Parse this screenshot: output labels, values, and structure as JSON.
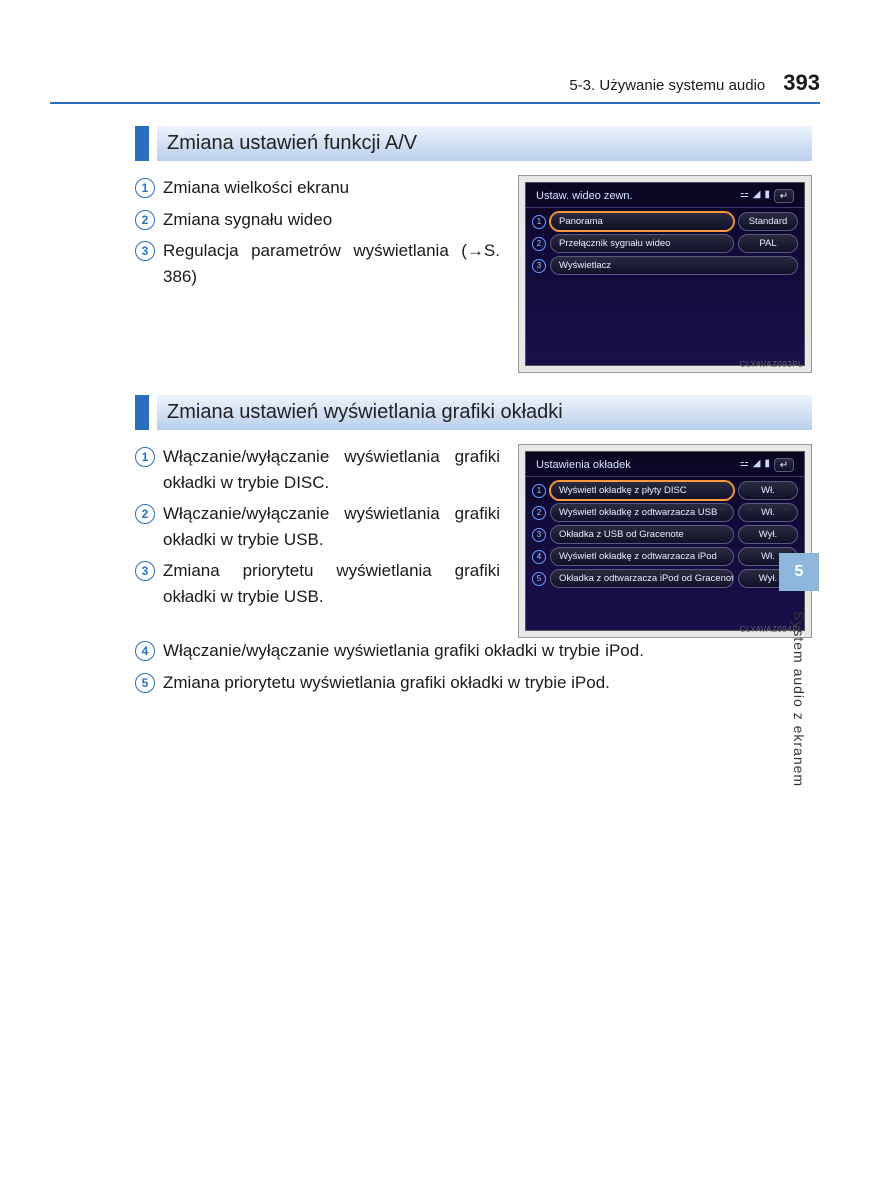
{
  "header": {
    "section_ref": "5-3. Używanie systemu audio",
    "page_number": "393"
  },
  "side_tab": {
    "chapter_number": "5",
    "label": "System audio z ekranem"
  },
  "section1": {
    "title": "Zmiana ustawień funkcji A/V",
    "items": [
      {
        "n": "1",
        "text": "Zmiana wielkości ekranu"
      },
      {
        "n": "2",
        "text": "Zmiana sygnału wideo"
      },
      {
        "n": "3",
        "text": "Regulacja parametrów wyświetlania (→S. 386)"
      }
    ],
    "screen": {
      "title": "Ustaw. wideo zewn.",
      "rows": [
        {
          "n": "1",
          "label": "Panorama",
          "value": "Standard",
          "highlight": true
        },
        {
          "n": "2",
          "label": "Przełącznik sygnału wideo",
          "value": "PAL",
          "highlight": false
        },
        {
          "n": "3",
          "label": "Wyświetlacz",
          "value": "",
          "highlight": false
        }
      ],
      "code": "CLYAVAZ093PL"
    }
  },
  "section2": {
    "title": "Zmiana ustawień wyświetlania grafiki okładki",
    "items_left": [
      {
        "n": "1",
        "text": "Włączanie/wyłączanie wyświetlania grafiki okładki w trybie DISC."
      },
      {
        "n": "2",
        "text": "Włączanie/wyłączanie wyświetlania grafiki okładki w trybie USB."
      },
      {
        "n": "3",
        "text": "Zmiana priorytetu wyświetlania grafiki okładki w trybie USB."
      }
    ],
    "items_full": [
      {
        "n": "4",
        "text": "Włączanie/wyłączanie wyświetlania grafiki okładki w trybie iPod."
      },
      {
        "n": "5",
        "text": "Zmiana priorytetu wyświetlania grafiki okładki w trybie iPod."
      }
    ],
    "screen": {
      "title": "Ustawienia okładek",
      "rows": [
        {
          "n": "1",
          "label": "Wyświetl okładkę z płyty DISC",
          "value": "Wł.",
          "highlight": true
        },
        {
          "n": "2",
          "label": "Wyświetl okładkę z odtwarzacza USB",
          "value": "Wł.",
          "highlight": false
        },
        {
          "n": "3",
          "label": "Okładka z USB od Gracenote",
          "value": "Wył.",
          "highlight": false
        },
        {
          "n": "4",
          "label": "Wyświetl okładkę z odtwarzacza iPod",
          "value": "Wł.",
          "highlight": false
        },
        {
          "n": "5",
          "label": "Okładka z odtwarzacza iPod od Gracenote",
          "value": "Wył.",
          "highlight": false
        }
      ],
      "code": "CLYAVAZ094PL"
    }
  },
  "status_icons": {
    "bt": "⚍",
    "sig": "◢",
    "bat": "▮",
    "back": "↵"
  }
}
